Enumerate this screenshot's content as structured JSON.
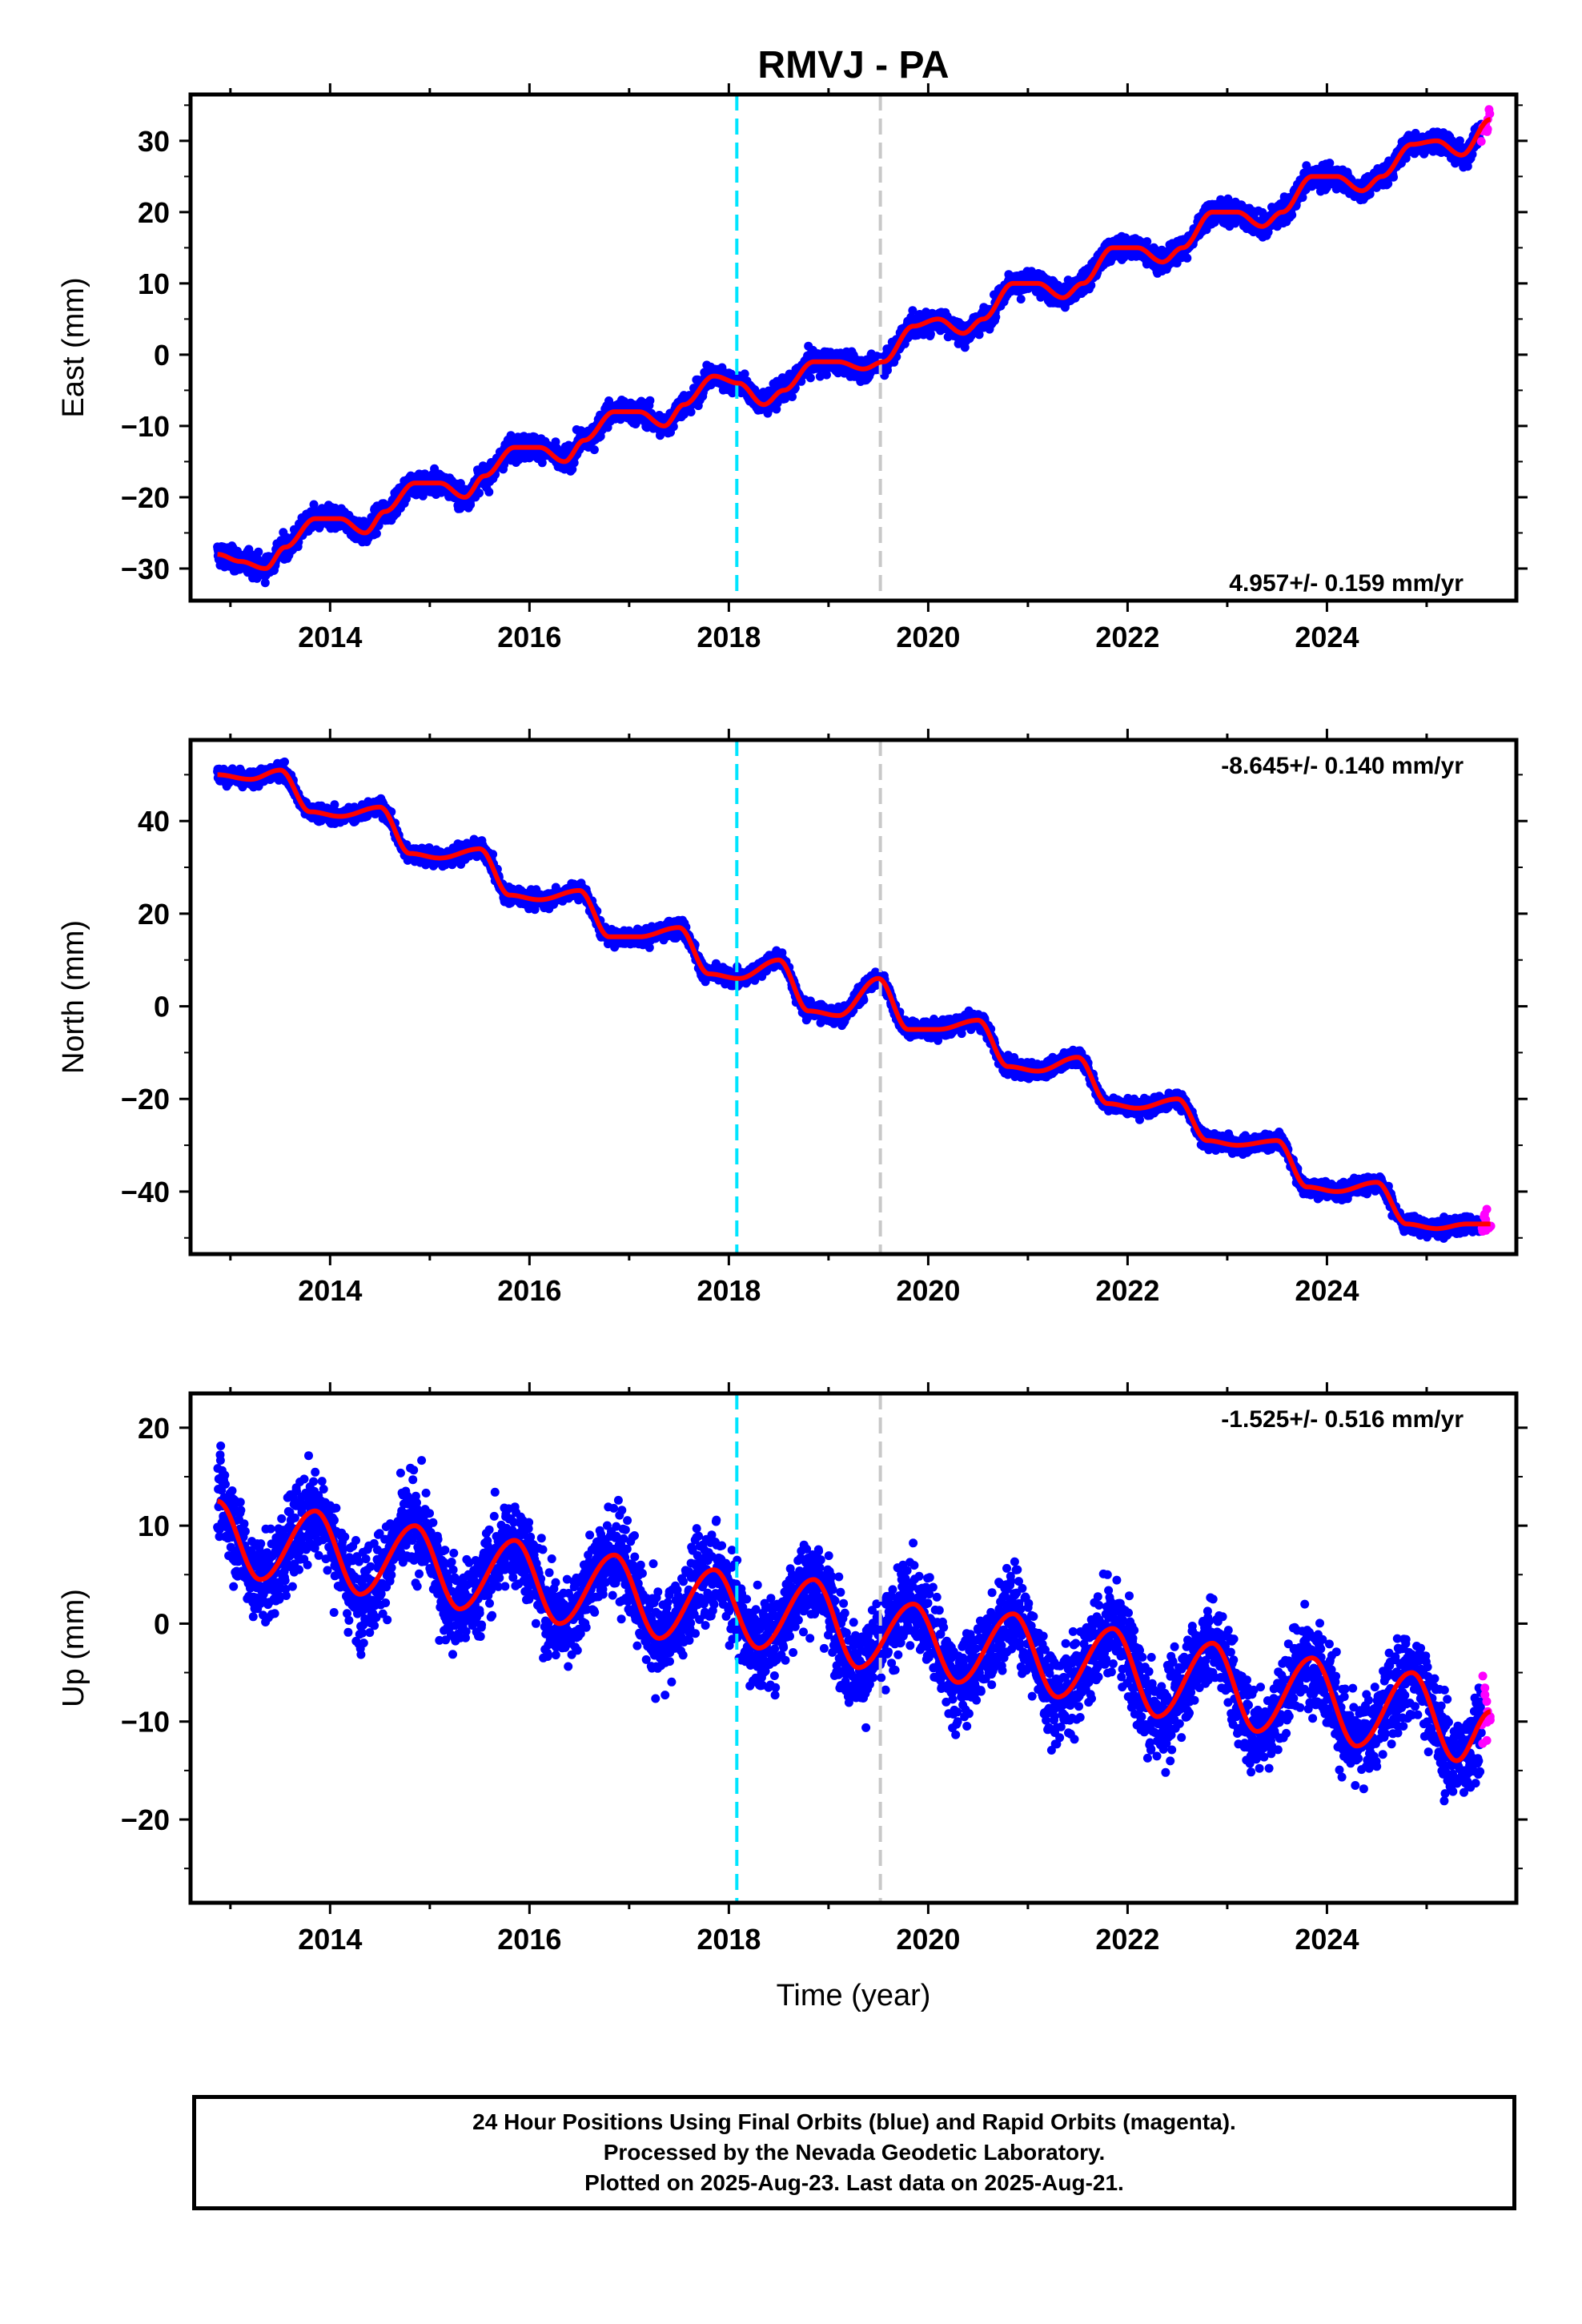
{
  "title": "RMVJ - PA",
  "xlabel": "Time (year)",
  "colors": {
    "final_orbits": "#0000ff",
    "rapid_orbits": "#ff00ff",
    "model_fit": "#ff0000",
    "marker_cyan": "#00e5ff",
    "marker_gray": "#c8c8c8"
  },
  "footer": {
    "line1": "24 Hour Positions Using Final Orbits (blue) and Rapid Orbits (magenta).",
    "line2": "Processed by the Nevada Geodetic Laboratory.",
    "line3": "Plotted on 2025-Aug-23. Last data on 2025-Aug-21."
  },
  "chart_data": [
    {
      "type": "scatter",
      "name": "east",
      "ylabel": "East (mm)",
      "rate_label": "4.957+/- 0.159 mm/yr",
      "xlim": [
        2012.6,
        2025.9
      ],
      "ylim": [
        -34.5,
        36.5
      ],
      "xticks": [
        2014,
        2016,
        2018,
        2020,
        2022,
        2024
      ],
      "yticks": [
        -30,
        -20,
        -10,
        0,
        10,
        20,
        30
      ],
      "vlines": [
        2018.08,
        2019.52
      ],
      "start": 2012.87,
      "end_final": 2025.55,
      "end_rapid": 2025.64,
      "trend_model": {
        "x": [
          2012.87,
          2013.1,
          2013.35,
          2013.55,
          2013.85,
          2014.1,
          2014.35,
          2014.55,
          2014.85,
          2015.1,
          2015.35,
          2015.55,
          2015.85,
          2016.1,
          2016.35,
          2016.55,
          2016.85,
          2017.1,
          2017.35,
          2017.55,
          2017.85,
          2018.1,
          2018.35,
          2018.55,
          2018.85,
          2019.1,
          2019.35,
          2019.55,
          2019.85,
          2020.1,
          2020.35,
          2020.55,
          2020.85,
          2021.1,
          2021.35,
          2021.55,
          2021.85,
          2022.1,
          2022.35,
          2022.55,
          2022.85,
          2023.1,
          2023.35,
          2023.55,
          2023.85,
          2024.1,
          2024.35,
          2024.55,
          2024.85,
          2025.1,
          2025.35,
          2025.64
        ],
        "y": [
          -28,
          -29,
          -30,
          -27,
          -23,
          -23,
          -25,
          -22,
          -18,
          -18,
          -20,
          -17,
          -13,
          -13,
          -15,
          -12,
          -8,
          -8,
          -10,
          -7,
          -3,
          -4,
          -7,
          -5,
          -1,
          -1,
          -2,
          -1,
          4,
          5,
          3,
          5,
          10,
          10,
          8,
          10,
          15,
          15,
          13,
          15,
          20,
          20,
          18,
          20,
          25,
          25,
          23,
          25,
          29.5,
          30,
          28,
          33
        ]
      },
      "scatter": 1.1
    },
    {
      "type": "scatter",
      "name": "north",
      "ylabel": "North (mm)",
      "rate_label": "-8.645+/- 0.140 mm/yr",
      "xlim": [
        2012.6,
        2025.9
      ],
      "ylim": [
        -53.5,
        57.5
      ],
      "xticks": [
        2014,
        2016,
        2018,
        2020,
        2022,
        2024
      ],
      "yticks": [
        -40,
        -20,
        0,
        20,
        40
      ],
      "vlines": [
        2018.08,
        2019.52
      ],
      "start": 2012.87,
      "end_final": 2025.55,
      "end_rapid": 2025.64,
      "trend_model": {
        "x": [
          2012.87,
          2013.2,
          2013.5,
          2013.8,
          2014.1,
          2014.5,
          2014.8,
          2015.1,
          2015.5,
          2015.8,
          2016.1,
          2016.5,
          2016.8,
          2017.1,
          2017.5,
          2017.8,
          2018.1,
          2018.5,
          2018.8,
          2019.1,
          2019.5,
          2019.8,
          2020.1,
          2020.5,
          2020.8,
          2021.1,
          2021.5,
          2021.8,
          2022.1,
          2022.5,
          2022.8,
          2023.1,
          2023.5,
          2023.8,
          2024.1,
          2024.5,
          2024.8,
          2025.1,
          2025.4,
          2025.64
        ],
        "y": [
          50,
          49,
          51,
          42,
          41,
          43,
          33,
          32,
          34,
          24,
          23,
          25,
          15,
          15,
          17,
          7,
          6,
          10,
          -1,
          -2,
          6,
          -5,
          -5,
          -3,
          -13,
          -14,
          -11,
          -21,
          -22,
          -20,
          -29,
          -30,
          -29,
          -39,
          -40,
          -38,
          -47,
          -48,
          -47,
          -47
        ]
      },
      "scatter": 1.2
    },
    {
      "type": "scatter",
      "name": "up",
      "ylabel": "Up (mm)",
      "rate_label": "-1.525+/- 0.516 mm/yr",
      "xlim": [
        2012.6,
        2025.9
      ],
      "ylim": [
        -28.5,
        23.5
      ],
      "xticks": [
        2014,
        2016,
        2018,
        2020,
        2022,
        2024
      ],
      "yticks": [
        -20,
        -10,
        0,
        10,
        20
      ],
      "vlines": [
        2018.08,
        2019.52
      ],
      "start": 2012.87,
      "end_final": 2025.55,
      "end_rapid": 2025.64,
      "trend_model": {
        "x": [
          2012.87,
          2013.3,
          2013.85,
          2014.3,
          2014.85,
          2015.3,
          2015.85,
          2016.3,
          2016.85,
          2017.3,
          2017.85,
          2018.3,
          2018.85,
          2019.3,
          2019.85,
          2020.3,
          2020.85,
          2021.3,
          2021.85,
          2022.3,
          2022.85,
          2023.3,
          2023.85,
          2024.3,
          2024.85,
          2025.3,
          2025.64
        ],
        "y": [
          12.5,
          4.5,
          11.5,
          3,
          10,
          1.5,
          8.5,
          0,
          7,
          -1.5,
          5.5,
          -2.5,
          4.5,
          -4.5,
          2,
          -6,
          1,
          -7.5,
          -0.5,
          -9.5,
          -2,
          -11,
          -3.5,
          -12.5,
          -5,
          -14,
          -9
        ]
      },
      "scatter": 3.2
    }
  ]
}
